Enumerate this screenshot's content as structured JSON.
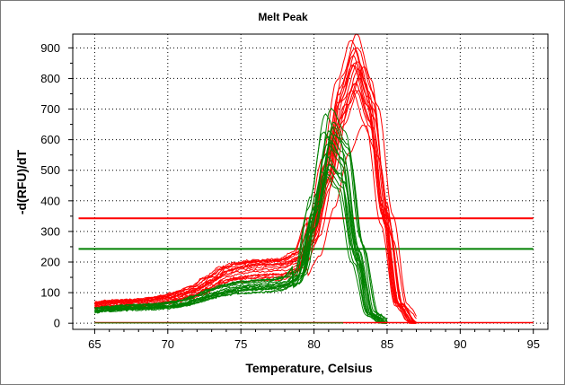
{
  "chart_data": {
    "type": "line",
    "title": "Melt Peak",
    "xlabel": "Temperature, Celsius",
    "ylabel": "-d(RFU)/dT",
    "xlim": [
      63.5,
      96
    ],
    "ylim": [
      -20,
      945
    ],
    "xticks": [
      65,
      70,
      75,
      80,
      85,
      90,
      95
    ],
    "yticks": [
      0,
      100,
      200,
      300,
      400,
      500,
      600,
      700,
      800,
      900
    ],
    "grid": true,
    "grid_style": "dotted",
    "threshold_lines": [
      {
        "color": "#ff0000",
        "y": 343
      },
      {
        "color": "#008000",
        "y": 243
      }
    ],
    "series_groups": [
      {
        "color": "#ff0000",
        "count": 18,
        "approx_curve": {
          "x": [
            65,
            66,
            67,
            68,
            69,
            70,
            71,
            72,
            73,
            74,
            75,
            76,
            77,
            78,
            79,
            80,
            81,
            82,
            83,
            84,
            85,
            86,
            87
          ],
          "y": [
            55,
            60,
            62,
            63,
            68,
            75,
            85,
            100,
            125,
            150,
            162,
            168,
            170,
            172,
            190,
            280,
            480,
            710,
            830,
            700,
            350,
            60,
            0
          ]
        }
      },
      {
        "color": "#008000",
        "count": 16,
        "approx_curve": {
          "x": [
            65,
            66,
            67,
            68,
            69,
            70,
            71,
            72,
            73,
            74,
            75,
            76,
            77,
            78,
            79,
            80,
            81,
            82,
            83,
            84,
            85
          ],
          "y": [
            40,
            45,
            48,
            50,
            52,
            55,
            62,
            75,
            92,
            105,
            112,
            115,
            118,
            125,
            160,
            380,
            630,
            560,
            250,
            30,
            0
          ]
        }
      }
    ]
  }
}
